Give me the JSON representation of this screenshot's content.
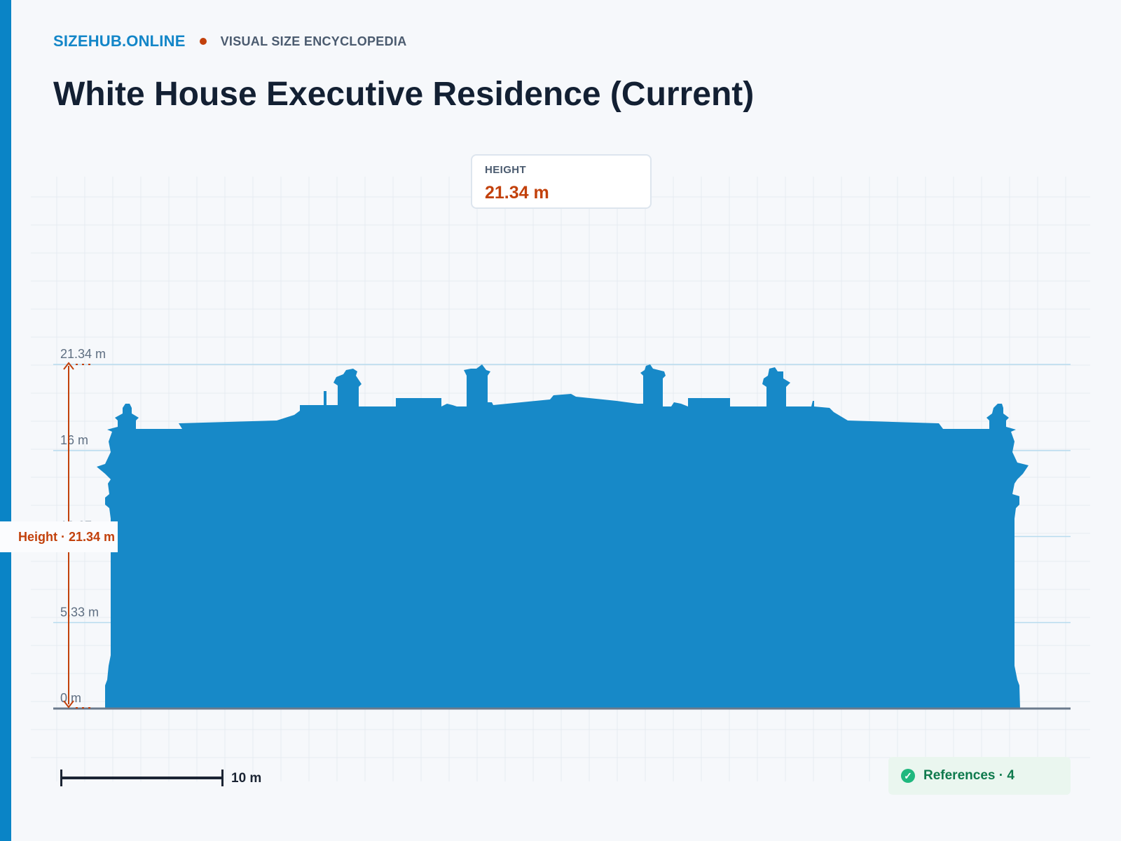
{
  "header": {
    "brand": "SIZEHUB.ONLINE",
    "tagline": "VISUAL SIZE ENCYCLOPEDIA"
  },
  "page_title": "White House Executive Residence (Current)",
  "height_card": {
    "label": "HEIGHT",
    "value": "21.34 m"
  },
  "height_tag": "Height · 21.34 m",
  "scale_label": "10 m",
  "references": {
    "label": "References · 4",
    "icon": "check-circle-icon"
  },
  "colors": {
    "accent": "#0a84c6",
    "highlight": "#c2410c",
    "building": "#1789c8",
    "gridline": "#b7dbee",
    "references_bg": "#eaf6ef"
  },
  "chart_data": {
    "type": "diagram",
    "unit": "m",
    "max_height": 21.34,
    "levels": [
      {
        "label": "21.34 m",
        "value": 21.34
      },
      {
        "label": "16 m",
        "value": 16
      },
      {
        "label": "10.67 m",
        "value": 10.67
      },
      {
        "label": "5.33 m",
        "value": 5.33
      },
      {
        "label": "0 m",
        "value": 0
      }
    ],
    "scale_meters": 10
  }
}
